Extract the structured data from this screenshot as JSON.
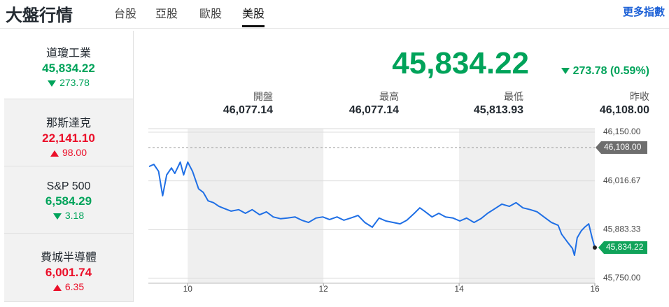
{
  "header": {
    "title": "大盤行情",
    "tabs": [
      "台股",
      "亞股",
      "歐股",
      "美股"
    ],
    "active_tab": 3,
    "more": "更多指數"
  },
  "sidebar": [
    {
      "name": "道瓊工業",
      "value": "45,834.22",
      "change": "273.78",
      "direction": "down"
    },
    {
      "name": "那斯達克",
      "value": "22,141.10",
      "change": "98.00",
      "direction": "up"
    },
    {
      "name": "S&P 500",
      "value": "6,584.29",
      "change": "3.18",
      "direction": "down"
    },
    {
      "name": "費城半導體",
      "value": "6,001.74",
      "change": "6.35",
      "direction": "up"
    }
  ],
  "selected": 0,
  "quote": {
    "value": "45,834.22",
    "change": "273.78 (0.59%)",
    "direction": "down"
  },
  "stats": [
    {
      "label": "開盤",
      "value": "46,077.14"
    },
    {
      "label": "最高",
      "value": "46,077.14"
    },
    {
      "label": "最低",
      "value": "45,813.93"
    },
    {
      "label": "昨收",
      "value": "46,108.00"
    }
  ],
  "chart_data": {
    "type": "line",
    "color": "#1f6fe5",
    "x": [
      9.43,
      9.5,
      9.57,
      9.63,
      9.69,
      9.76,
      9.81,
      9.89,
      9.94,
      10,
      10.07,
      10.16,
      10.23,
      10.3,
      10.38,
      10.46,
      10.54,
      10.64,
      10.75,
      10.85,
      10.95,
      11.06,
      11.16,
      11.26,
      11.37,
      11.47,
      11.58,
      11.68,
      11.78,
      11.89,
      11.99,
      12.09,
      12.2,
      12.3,
      12.4,
      12.51,
      12.61,
      12.72,
      12.82,
      12.92,
      13.03,
      13.13,
      13.23,
      13.34,
      13.42,
      13.49,
      13.6,
      13.7,
      13.8,
      13.91,
      14.01,
      14.11,
      14.22,
      14.32,
      14.42,
      14.53,
      14.63,
      14.74,
      14.84,
      14.94,
      15.05,
      15.15,
      15.25,
      15.36,
      15.46,
      15.51,
      15.59,
      15.67,
      15.7,
      15.74,
      15.8,
      15.85,
      15.91,
      15.96,
      16
    ],
    "values": [
      46056,
      46062,
      46043,
      45976,
      46033,
      46052,
      46037,
      46068,
      46033,
      46068,
      46043,
      45995,
      45985,
      45962,
      45957,
      45947,
      45941,
      45934,
      45938,
      45928,
      45938,
      45924,
      45932,
      45918,
      45913,
      45915,
      45918,
      45909,
      45903,
      45915,
      45918,
      45911,
      45918,
      45909,
      45915,
      45922,
      45903,
      45890,
      45915,
      45907,
      45903,
      45899,
      45909,
      45928,
      45943,
      45934,
      45918,
      45928,
      45918,
      45915,
      45907,
      45915,
      45903,
      45913,
      45928,
      45941,
      45953,
      45947,
      45957,
      45943,
      45938,
      45932,
      45918,
      45903,
      45895,
      45871,
      45851,
      45832,
      45813,
      45861,
      45880,
      45890,
      45899,
      45861,
      45834.22
    ],
    "xlim": [
      9.43,
      16
    ],
    "xticks": [
      10,
      12,
      14,
      16
    ],
    "ylim": [
      45750,
      46150
    ],
    "yticks": [
      {
        "value": 46150,
        "label": "46,150.00"
      },
      {
        "value": 46016.67,
        "label": "46,016.67"
      },
      {
        "value": 45883.33,
        "label": "45,883.33"
      },
      {
        "value": 45750,
        "label": "45,750.00"
      }
    ],
    "grid": true,
    "reference_line": {
      "value": 46108,
      "label": "46,108.00"
    },
    "last_value_label": "45,834.22"
  }
}
